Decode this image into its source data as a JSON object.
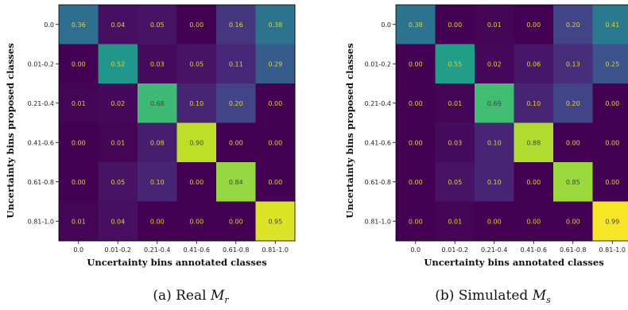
{
  "chart_data": [
    {
      "type": "heatmap",
      "caption": {
        "prefix": "(a) Real ",
        "var": "M",
        "sub": "r"
      },
      "xlabel": "Uncertainty bins annotated classes",
      "ylabel": "Uncertainty bins proposed classes",
      "x_categories": [
        "0.0",
        "0.01-0.2",
        "0.21-0.4",
        "0.41-0.6",
        "0.61-0.8",
        "0.81-1.0"
      ],
      "y_categories": [
        "0.0",
        "0.01-0.2",
        "0.21-0.4",
        "0.41-0.6",
        "0.61-0.8",
        "0.81-1.0"
      ],
      "values": [
        [
          0.36,
          0.04,
          0.05,
          0.0,
          0.16,
          0.38
        ],
        [
          0.0,
          0.52,
          0.03,
          0.05,
          0.11,
          0.29
        ],
        [
          0.01,
          0.02,
          0.68,
          0.1,
          0.2,
          0.0
        ],
        [
          0.0,
          0.01,
          0.08,
          0.9,
          0.0,
          0.0
        ],
        [
          0.0,
          0.05,
          0.1,
          0.0,
          0.84,
          0.0
        ],
        [
          0.01,
          0.04,
          0.0,
          0.0,
          0.0,
          0.95
        ]
      ],
      "colormap": "viridis",
      "value_range": [
        0,
        1
      ]
    },
    {
      "type": "heatmap",
      "caption": {
        "prefix": "(b) Simulated ",
        "var": "M",
        "sub": "s"
      },
      "xlabel": "Uncertainty bins annotated classes",
      "ylabel": "Uncertainty bins proposed classes",
      "x_categories": [
        "0.0",
        "0.01-0.2",
        "0.21-0.4",
        "0.41-0.6",
        "0.61-0.8",
        "0.81-1.0"
      ],
      "y_categories": [
        "0.0",
        "0.01-0.2",
        "0.21-0.4",
        "0.41-0.6",
        "0.61-0.8",
        "0.81-1.0"
      ],
      "values": [
        [
          0.38,
          0.0,
          0.01,
          0.0,
          0.2,
          0.41
        ],
        [
          0.0,
          0.55,
          0.02,
          0.06,
          0.13,
          0.25
        ],
        [
          0.0,
          0.01,
          0.69,
          0.1,
          0.2,
          0.0
        ],
        [
          0.0,
          0.03,
          0.1,
          0.88,
          0.0,
          0.0
        ],
        [
          0.0,
          0.05,
          0.1,
          0.0,
          0.85,
          0.0
        ],
        [
          0.0,
          0.01,
          0.0,
          0.0,
          0.0,
          0.99
        ]
      ],
      "colormap": "viridis",
      "value_range": [
        0,
        1
      ]
    }
  ]
}
